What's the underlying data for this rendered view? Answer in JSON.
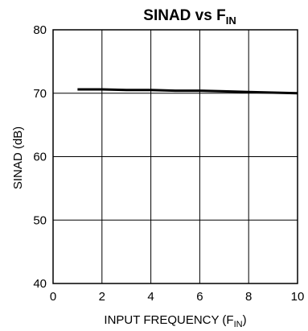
{
  "chart_data": {
    "type": "line",
    "title": "SINAD vs F",
    "title_subscript": "IN",
    "xlabel": "INPUT FREQUENCY (F",
    "xlabel_subscript": "IN",
    "xlabel_suffix": ")",
    "ylabel": "SINAD (dB)",
    "xlim": [
      0,
      10
    ],
    "ylim": [
      40,
      80
    ],
    "xticks": [
      0,
      2,
      4,
      6,
      8,
      10
    ],
    "yticks": [
      40,
      50,
      60,
      70,
      80
    ],
    "grid": true,
    "series": [
      {
        "color": "#000000",
        "x": [
          1,
          2,
          3,
          4,
          5,
          6,
          7,
          8,
          9,
          10
        ],
        "y": [
          70.6,
          70.6,
          70.5,
          70.5,
          70.4,
          70.4,
          70.3,
          70.2,
          70.1,
          70.0
        ]
      }
    ]
  }
}
